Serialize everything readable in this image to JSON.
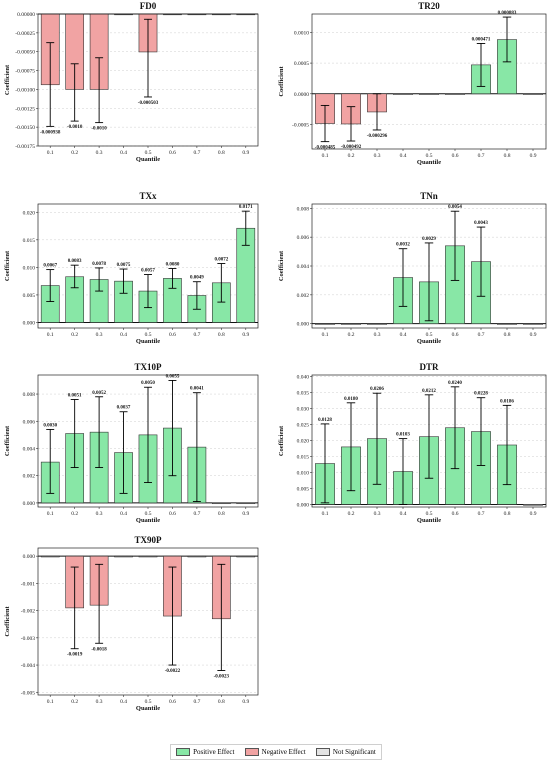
{
  "quantiles": [
    "0.1",
    "0.2",
    "0.3",
    "0.4",
    "0.5",
    "0.6",
    "0.7",
    "0.8",
    "0.9"
  ],
  "colors": {
    "positive": "#88e7a6",
    "negative": "#f1a3a3",
    "not_significant": "#e3e3e3",
    "edge": "#333333"
  },
  "legend": {
    "positive": "Positive Effect",
    "negative": "Negative Effect",
    "not_significant": "Not Significant"
  },
  "chart_data": [
    {
      "type": "bar",
      "title": "FD0",
      "xlabel": "Quantile",
      "ylabel": "Coefficient",
      "ylim": [
        -0.00175,
        0.0
      ],
      "yticks": [
        -0.00175,
        -0.0015,
        -0.00125,
        -0.001,
        -0.00075,
        -0.0005,
        -0.00025,
        0.0
      ],
      "ytick_labels": [
        "-0.00175",
        "-0.00150",
        "-0.00125",
        "-0.00100",
        "-0.00075",
        "-0.00050",
        "-0.00025",
        "0.00000"
      ],
      "values": [
        -0.000938,
        -0.001,
        -0.001,
        0,
        -0.000503,
        0,
        0,
        0,
        0
      ],
      "ci_low": [
        -0.00149,
        -0.00142,
        -0.00144,
        null,
        -0.0011,
        null,
        null,
        null,
        null
      ],
      "ci_high": [
        -0.00038,
        -0.00066,
        -0.00058,
        null,
        -7e-05,
        null,
        null,
        null,
        null
      ],
      "effect": [
        "neg",
        "neg",
        "neg",
        "ns",
        "neg",
        "ns",
        "ns",
        "ns",
        "ns"
      ],
      "labels": [
        "-0.000938",
        "-0.0010",
        "-0.0010",
        "",
        "-0.000503",
        "",
        "",
        "",
        ""
      ]
    },
    {
      "type": "bar",
      "title": "TR20",
      "xlabel": "Quantile",
      "ylabel": "Coefficient",
      "ylim": [
        -0.0009,
        0.0013
      ],
      "yticks": [
        -0.0005,
        0.0,
        0.0005,
        0.001
      ],
      "ytick_labels": [
        "-0.0005",
        "0.0000",
        "0.0005",
        "0.0010"
      ],
      "values": [
        -0.000485,
        -0.000492,
        -0.000296,
        0,
        0,
        0,
        0.000471,
        0.000883,
        0
      ],
      "ci_low": [
        -0.00078,
        -0.00077,
        -0.00059,
        null,
        null,
        null,
        0.00012,
        0.00052,
        null
      ],
      "ci_high": [
        -0.00019,
        -0.00021,
        0.0,
        null,
        null,
        null,
        0.00082,
        0.00125,
        null
      ],
      "effect": [
        "neg",
        "neg",
        "neg",
        "ns",
        "ns",
        "ns",
        "pos",
        "pos",
        "ns"
      ],
      "labels": [
        "-0.000485",
        "-0.000492",
        "-0.000296",
        "",
        "",
        "",
        "0.000471",
        "0.000883",
        ""
      ]
    },
    {
      "type": "bar",
      "title": "TXx",
      "xlabel": "Quantile",
      "ylabel": "Coefficient",
      "ylim": [
        -0.001,
        0.0215
      ],
      "yticks": [
        0.0,
        0.005,
        0.01,
        0.015,
        0.02
      ],
      "ytick_labels": [
        "0.000",
        "0.005",
        "0.010",
        "0.015",
        "0.020"
      ],
      "values": [
        0.0067,
        0.0083,
        0.0078,
        0.0075,
        0.0057,
        0.008,
        0.0049,
        0.0072,
        0.0171
      ],
      "ci_low": [
        0.0038,
        0.0063,
        0.0057,
        0.0053,
        0.0027,
        0.0062,
        0.0024,
        0.0037,
        0.014
      ],
      "ci_high": [
        0.0096,
        0.0104,
        0.0099,
        0.0097,
        0.0087,
        0.0098,
        0.0074,
        0.0107,
        0.0202
      ],
      "effect": [
        "pos",
        "pos",
        "pos",
        "pos",
        "pos",
        "pos",
        "pos",
        "pos",
        "pos"
      ],
      "labels": [
        "0.0067",
        "0.0083",
        "0.0078",
        "0.0075",
        "0.0057",
        "0.0080",
        "0.0049",
        "0.0072",
        "0.0171"
      ]
    },
    {
      "type": "bar",
      "title": "TNn",
      "xlabel": "Quantile",
      "ylabel": "Coefficient",
      "ylim": [
        -0.0003,
        0.0083
      ],
      "yticks": [
        0.0,
        0.002,
        0.004,
        0.006,
        0.008
      ],
      "ytick_labels": [
        "0.000",
        "0.002",
        "0.004",
        "0.006",
        "0.008"
      ],
      "values": [
        0,
        0,
        0,
        0.0032,
        0.0029,
        0.0054,
        0.0043,
        0,
        0
      ],
      "ci_low": [
        null,
        null,
        null,
        0.0012,
        0.0002,
        0.003,
        0.0019,
        null,
        null
      ],
      "ci_high": [
        null,
        null,
        null,
        0.0052,
        0.0056,
        0.0078,
        0.0067,
        null,
        null
      ],
      "effect": [
        "ns",
        "ns",
        "ns",
        "pos",
        "pos",
        "pos",
        "pos",
        "ns",
        "ns"
      ],
      "labels": [
        "",
        "",
        "",
        "0.0032",
        "0.0029",
        "0.0054",
        "0.0043",
        "",
        ""
      ]
    },
    {
      "type": "bar",
      "title": "TX10P",
      "xlabel": "Quantile",
      "ylabel": "Coefficient",
      "ylim": [
        -0.0003,
        0.0094
      ],
      "yticks": [
        0.0,
        0.002,
        0.004,
        0.006,
        0.008
      ],
      "ytick_labels": [
        "0.000",
        "0.002",
        "0.004",
        "0.006",
        "0.008"
      ],
      "values": [
        0.003,
        0.0051,
        0.0052,
        0.0037,
        0.005,
        0.0055,
        0.0041,
        0,
        0
      ],
      "ci_low": [
        0.0007,
        0.0026,
        0.0026,
        0.0007,
        0.0015,
        0.002,
        0.0001,
        null,
        null
      ],
      "ci_high": [
        0.0054,
        0.0076,
        0.0078,
        0.0067,
        0.0085,
        0.009,
        0.0081,
        null,
        null
      ],
      "effect": [
        "pos",
        "pos",
        "pos",
        "pos",
        "pos",
        "pos",
        "pos",
        "ns",
        "ns"
      ],
      "labels": [
        "0.0030",
        "0.0051",
        "0.0052",
        "0.0037",
        "0.0050",
        "0.0055",
        "0.0041",
        "",
        ""
      ]
    },
    {
      "type": "bar",
      "title": "DTR",
      "xlabel": "Quantile",
      "ylabel": "Coefficient",
      "ylim": [
        -0.0008,
        0.0405
      ],
      "yticks": [
        0.0,
        0.005,
        0.01,
        0.015,
        0.02,
        0.025,
        0.03,
        0.035,
        0.04
      ],
      "ytick_labels": [
        "0.000",
        "0.005",
        "0.010",
        "0.015",
        "0.020",
        "0.025",
        "0.030",
        "0.035",
        "0.040"
      ],
      "values": [
        0.0128,
        0.018,
        0.0206,
        0.0103,
        0.0212,
        0.024,
        0.0228,
        0.0186,
        0
      ],
      "ci_low": [
        0.0005,
        0.0043,
        0.0063,
        0.0,
        0.0082,
        0.0112,
        0.0122,
        0.0062,
        null
      ],
      "ci_high": [
        0.0252,
        0.0318,
        0.0348,
        0.0206,
        0.0343,
        0.0368,
        0.0334,
        0.031,
        null
      ],
      "effect": [
        "pos",
        "pos",
        "pos",
        "pos",
        "pos",
        "pos",
        "pos",
        "pos",
        "ns"
      ],
      "labels": [
        "0.0128",
        "0.0180",
        "0.0206",
        "0.0103",
        "0.0212",
        "0.0240",
        "0.0228",
        "0.0186",
        ""
      ]
    },
    {
      "type": "bar",
      "title": "TX90P",
      "xlabel": "Quantile",
      "ylabel": "Coefficient",
      "ylim": [
        -0.0051,
        0.0003
      ],
      "yticks": [
        -0.005,
        -0.004,
        -0.003,
        -0.002,
        -0.001,
        0.0
      ],
      "ytick_labels": [
        "-0.005",
        "-0.004",
        "-0.003",
        "-0.002",
        "-0.001",
        "0.000"
      ],
      "values": [
        0,
        -0.0019,
        -0.0018,
        0,
        0,
        -0.0022,
        0,
        -0.0023,
        0
      ],
      "ci_low": [
        null,
        -0.0034,
        -0.0032,
        null,
        null,
        -0.004,
        null,
        -0.0042,
        null
      ],
      "ci_high": [
        null,
        -0.0004,
        -0.0003,
        null,
        null,
        -0.0004,
        null,
        -0.0003,
        null
      ],
      "effect": [
        "ns",
        "neg",
        "neg",
        "ns",
        "ns",
        "neg",
        "ns",
        "neg",
        "ns"
      ],
      "labels": [
        "",
        "-0.0019",
        "-0.0018",
        "",
        "",
        "-0.0022",
        "",
        "-0.0023",
        ""
      ]
    }
  ]
}
